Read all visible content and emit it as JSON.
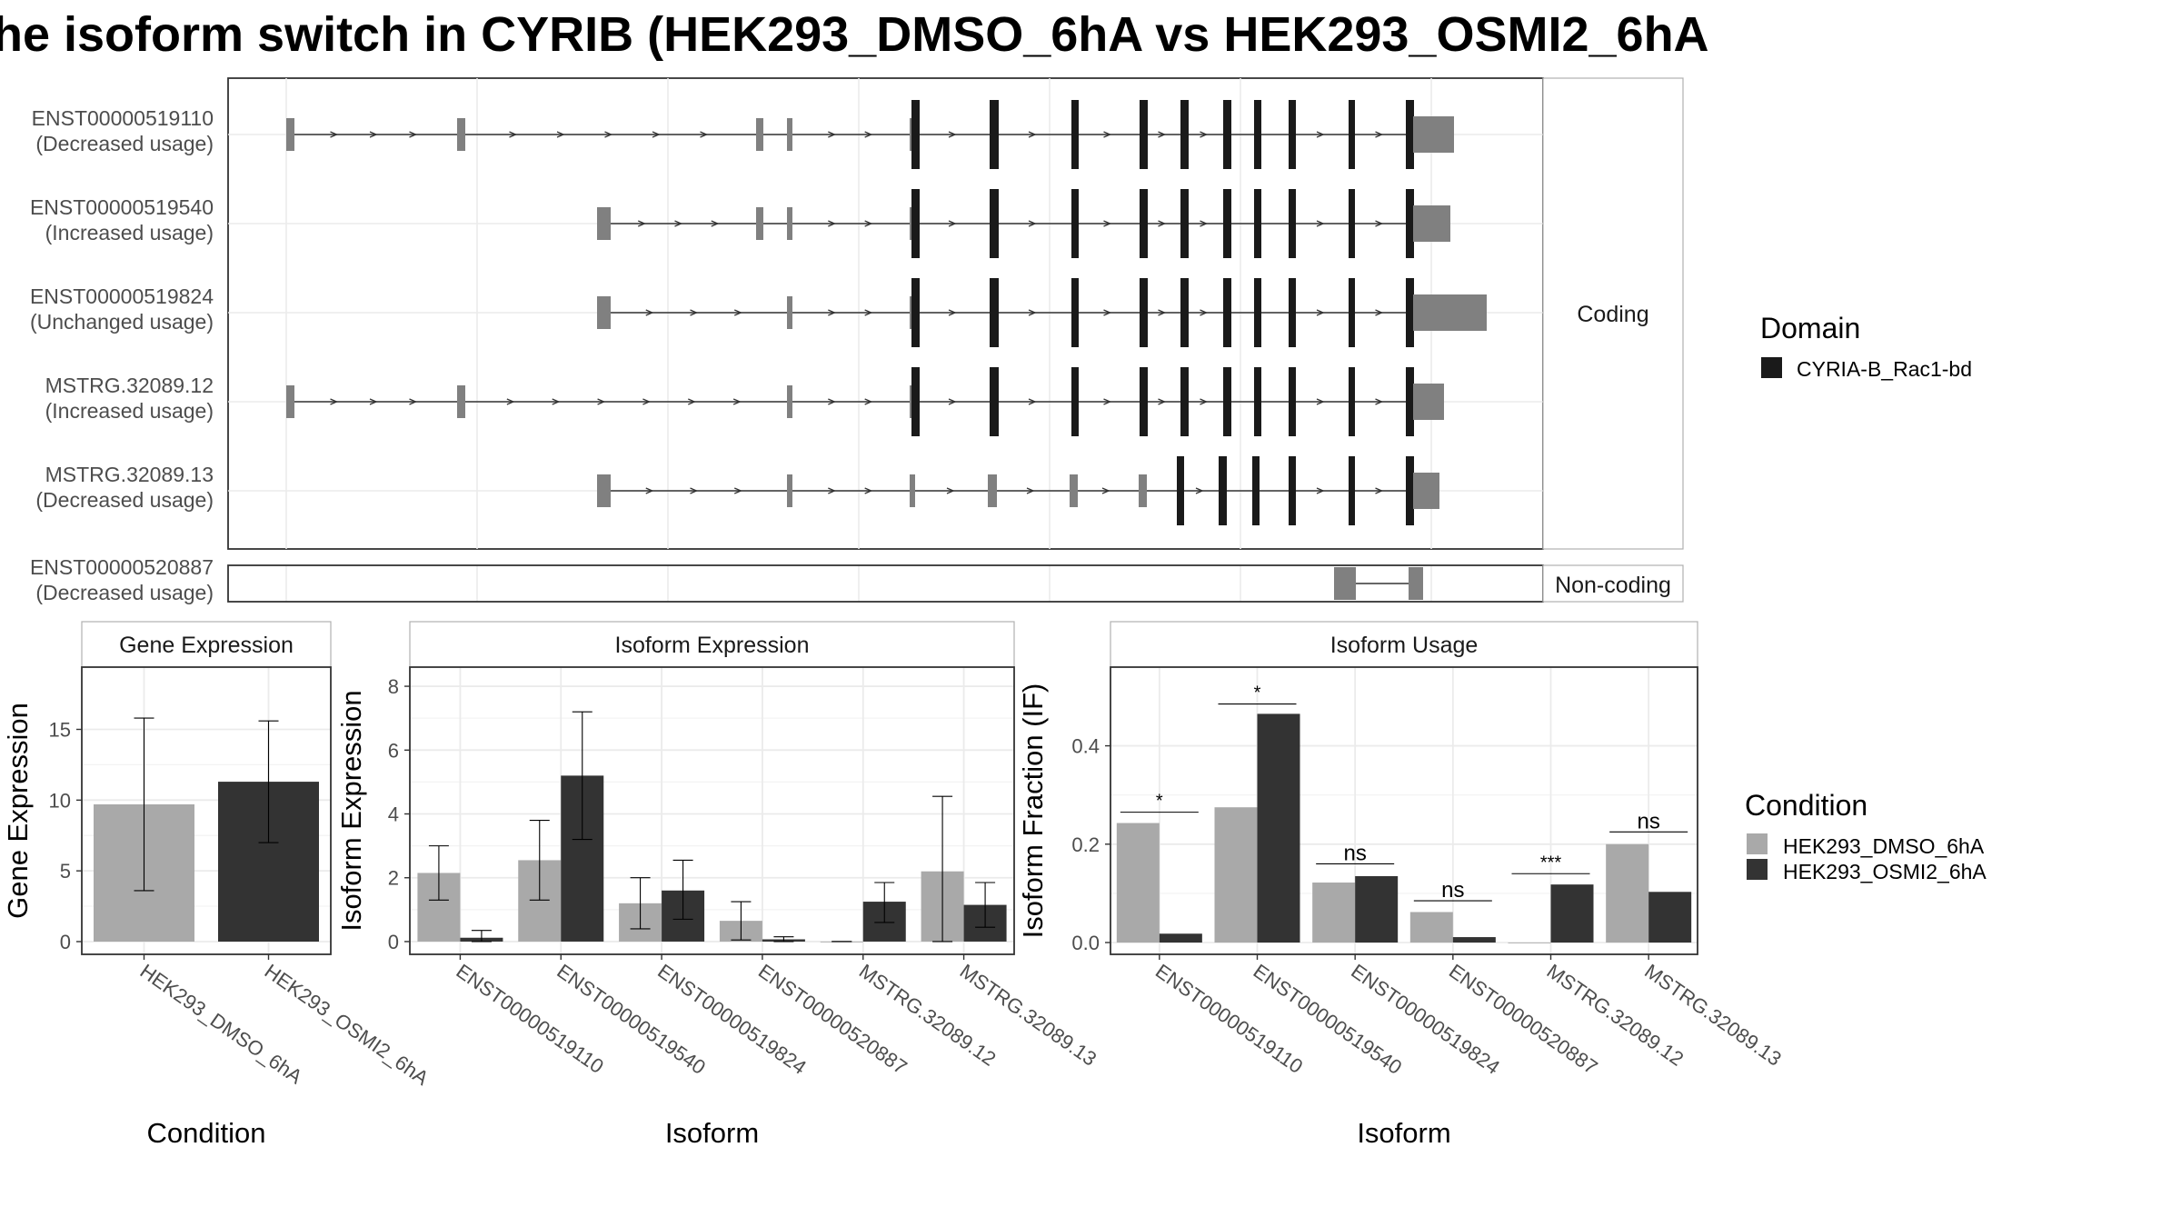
{
  "title": "he isoform switch in CYRIB (HEK293_DMSO_6hA vs HEK293_OSMI2_6hA",
  "colors": {
    "dmso": "#a9a9a9",
    "osmi2": "#333333",
    "utr": "#808080",
    "domain": "#1a1a1a",
    "grid": "#ebebeb",
    "panel_border": "#333333",
    "strip_border": "#b0b0b0",
    "axis_text": "#4d4d4d"
  },
  "structure_panel": {
    "facets": {
      "coding": "Coding",
      "noncoding": "Non-coding"
    },
    "transcripts": [
      {
        "id": "ENST00000519110",
        "usage": "(Decreased usage)",
        "group": "coding"
      },
      {
        "id": "ENST00000519540",
        "usage": "(Increased usage)",
        "group": "coding"
      },
      {
        "id": "ENST00000519824",
        "usage": "(Unchanged usage)",
        "group": "coding"
      },
      {
        "id": "MSTRG.32089.12",
        "usage": "(Increased usage)",
        "group": "coding"
      },
      {
        "id": "MSTRG.32089.13",
        "usage": "(Decreased usage)",
        "group": "coding"
      },
      {
        "id": "ENST00000520887",
        "usage": "(Decreased usage)",
        "group": "noncoding"
      }
    ]
  },
  "legends": {
    "domain": {
      "title": "Domain",
      "items": [
        "CYRIA-B_Rac1-bd"
      ]
    },
    "condition": {
      "title": "Condition",
      "items": [
        "HEK293_DMSO_6hA",
        "HEK293_OSMI2_6hA"
      ]
    }
  },
  "chart_data": [
    {
      "type": "bar",
      "title": "Gene Expression",
      "xlabel": "Condition",
      "ylabel": "Gene Expression",
      "categories": [
        "HEK293_DMSO_6hA",
        "HEK293_OSMI2_6hA"
      ],
      "values": [
        9.7,
        11.3
      ],
      "error_low": [
        3.6,
        7.0
      ],
      "error_high": [
        15.8,
        15.6
      ],
      "ylim": [
        -0.9,
        19.4
      ],
      "yticks": [
        0,
        5,
        10,
        15
      ],
      "grid": true
    },
    {
      "type": "bar",
      "title": "Isoform Expression",
      "xlabel": "Isoform",
      "ylabel": "Isoform Expression",
      "categories": [
        "ENST00000519110",
        "ENST00000519540",
        "ENST00000519824",
        "ENST00000520887",
        "MSTRG.32089.12",
        "MSTRG.32089.13"
      ],
      "series": [
        {
          "name": "HEK293_DMSO_6hA",
          "values": [
            2.15,
            2.55,
            1.2,
            0.65,
            0.0,
            2.2
          ],
          "error_low": [
            1.3,
            1.3,
            0.4,
            0.05,
            0.0,
            0.0
          ],
          "error_high": [
            3.0,
            3.8,
            2.0,
            1.25,
            0.0,
            4.55
          ]
        },
        {
          "name": "HEK293_OSMI2_6hA",
          "values": [
            0.12,
            5.2,
            1.6,
            0.07,
            1.25,
            1.15
          ],
          "error_low": [
            0.0,
            3.2,
            0.7,
            0.0,
            0.6,
            0.45
          ],
          "error_high": [
            0.35,
            7.2,
            2.55,
            0.15,
            1.85,
            1.85
          ]
        }
      ],
      "ylim": [
        -0.4,
        8.6
      ],
      "yticks": [
        0,
        2,
        4,
        6,
        8
      ],
      "grid": true
    },
    {
      "type": "bar",
      "title": "Isoform Usage",
      "xlabel": "Isoform",
      "ylabel": "Isoform Fraction (IF)",
      "categories": [
        "ENST00000519110",
        "ENST00000519540",
        "ENST00000519824",
        "ENST00000520887",
        "MSTRG.32089.12",
        "MSTRG.32089.13"
      ],
      "series": [
        {
          "name": "HEK293_DMSO_6hA",
          "values": [
            0.243,
            0.275,
            0.122,
            0.062,
            0.0,
            0.2
          ]
        },
        {
          "name": "HEK293_OSMI2_6hA",
          "values": [
            0.018,
            0.465,
            0.135,
            0.011,
            0.118,
            0.103
          ]
        }
      ],
      "significance": [
        "*",
        "*",
        "ns",
        "ns",
        "***",
        "ns"
      ],
      "significance_level": [
        0.265,
        0.485,
        0.16,
        0.085,
        0.14,
        0.225
      ],
      "ylim": [
        -0.024,
        0.56
      ],
      "yticks": [
        0.0,
        0.2,
        0.4
      ],
      "grid": true
    }
  ]
}
